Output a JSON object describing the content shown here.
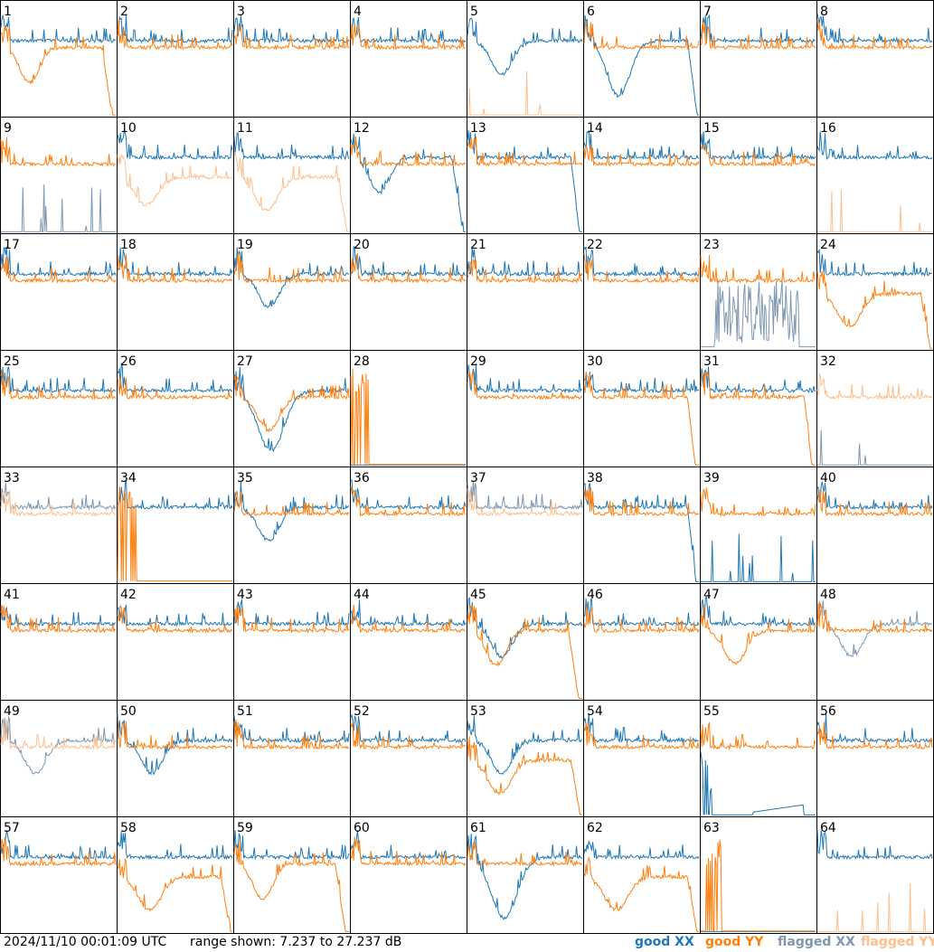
{
  "footer": {
    "timestamp": "2024/11/10 00:01:09 UTC",
    "range_text": "range shown: 7.237 to 27.237 dB"
  },
  "legend": [
    {
      "label": "good XX",
      "color": "#1f77b4"
    },
    {
      "label": "good YY",
      "color": "#ff7f0e"
    },
    {
      "label": "flagged XX",
      "color": "#7f97b0"
    },
    {
      "label": "flagged YY",
      "color": "#fdbf8f"
    }
  ],
  "chart_data": {
    "type": "line",
    "description_units": "dB",
    "yrange": [
      7.237,
      27.237
    ],
    "grid_rows": 8,
    "grid_cols": 8,
    "series_styles": {
      "good_xx": "#1f77b4",
      "good_yy": "#ff7f0e",
      "flagged_xx": "#7f97b0",
      "flagged_yy": "#fdbf8f"
    },
    "panels": [
      {
        "id": "1",
        "xx": "good",
        "yy": "good",
        "xx_shape": "flat",
        "yy_shape": "dip-rollbot"
      },
      {
        "id": "2",
        "xx": "good",
        "yy": "good",
        "xx_shape": "flat",
        "yy_shape": "flat"
      },
      {
        "id": "3",
        "xx": "good",
        "yy": "good",
        "xx_shape": "flat",
        "yy_shape": "flat"
      },
      {
        "id": "4",
        "xx": "good",
        "yy": "good",
        "xx_shape": "flat",
        "yy_shape": "flat"
      },
      {
        "id": "5",
        "xx": "good",
        "yy": "flagged",
        "xx_shape": "dip",
        "yy_shape": "bottom-spikes"
      },
      {
        "id": "6",
        "xx": "good",
        "yy": "good",
        "xx_shape": "bigdip-rollbot",
        "yy_shape": "flat"
      },
      {
        "id": "7",
        "xx": "good",
        "yy": "good",
        "xx_shape": "flat",
        "yy_shape": "flat"
      },
      {
        "id": "8",
        "xx": "good",
        "yy": "good",
        "xx_shape": "flat",
        "yy_shape": "flat"
      },
      {
        "id": "9",
        "xx": "flagged",
        "yy": "good",
        "xx_shape": "bottom-spikes",
        "yy_shape": "flat"
      },
      {
        "id": "10",
        "xx": "good",
        "yy": "flagged",
        "xx_shape": "flat",
        "yy_shape": "lowdip"
      },
      {
        "id": "11",
        "xx": "good",
        "yy": "flagged",
        "xx_shape": "flat",
        "yy_shape": "lowdip-rollbot"
      },
      {
        "id": "12",
        "xx": "good",
        "yy": "good",
        "xx_shape": "dip-rollbot",
        "yy_shape": "flat"
      },
      {
        "id": "13",
        "xx": "good",
        "yy": "good",
        "xx_shape": "flat-rollbot",
        "yy_shape": "flat"
      },
      {
        "id": "14",
        "xx": "good",
        "yy": "good",
        "xx_shape": "flat",
        "yy_shape": "flat"
      },
      {
        "id": "15",
        "xx": "good",
        "yy": "good",
        "xx_shape": "flat",
        "yy_shape": "flat"
      },
      {
        "id": "16",
        "xx": "good",
        "yy": "flagged",
        "xx_shape": "flat",
        "yy_shape": "bottom-spikes"
      },
      {
        "id": "17",
        "xx": "good",
        "yy": "good",
        "xx_shape": "flat",
        "yy_shape": "flat"
      },
      {
        "id": "18",
        "xx": "good",
        "yy": "good",
        "xx_shape": "flat",
        "yy_shape": "flat"
      },
      {
        "id": "19",
        "xx": "good",
        "yy": "good",
        "xx_shape": "dip",
        "yy_shape": "flat"
      },
      {
        "id": "20",
        "xx": "good",
        "yy": "good",
        "xx_shape": "flat",
        "yy_shape": "flat"
      },
      {
        "id": "21",
        "xx": "good",
        "yy": "good",
        "xx_shape": "flat",
        "yy_shape": "flat"
      },
      {
        "id": "22",
        "xx": "good",
        "yy": "good",
        "xx_shape": "flat",
        "yy_shape": "flat"
      },
      {
        "id": "23",
        "xx": "flagged",
        "yy": "good",
        "xx_shape": "noise",
        "yy_shape": "flat"
      },
      {
        "id": "24",
        "xx": "good",
        "yy": "good",
        "xx_shape": "flat",
        "yy_shape": "lowdip-rollbot"
      },
      {
        "id": "25",
        "xx": "good",
        "yy": "good",
        "xx_shape": "flat",
        "yy_shape": "flat"
      },
      {
        "id": "26",
        "xx": "good",
        "yy": "good",
        "xx_shape": "flat",
        "yy_shape": "flat"
      },
      {
        "id": "27",
        "xx": "good",
        "yy": "good",
        "xx_shape": "bigdip",
        "yy_shape": "dip"
      },
      {
        "id": "28",
        "xx": "good",
        "yy": "good",
        "xx_shape": "bottom",
        "yy_shape": "burst"
      },
      {
        "id": "29",
        "xx": "good",
        "yy": "good",
        "xx_shape": "flat",
        "yy_shape": "flat"
      },
      {
        "id": "30",
        "xx": "good",
        "yy": "good",
        "xx_shape": "flat",
        "yy_shape": "flat-rollbot"
      },
      {
        "id": "31",
        "xx": "good",
        "yy": "good",
        "xx_shape": "flat",
        "yy_shape": "flat-rollbot"
      },
      {
        "id": "32",
        "xx": "flagged",
        "yy": "flagged",
        "xx_shape": "bottom-spikes",
        "yy_shape": "flat"
      },
      {
        "id": "33",
        "xx": "flagged",
        "yy": "flagged",
        "xx_shape": "flat",
        "yy_shape": "flat"
      },
      {
        "id": "34",
        "xx": "good",
        "yy": "good",
        "xx_shape": "flat",
        "yy_shape": "burst"
      },
      {
        "id": "35",
        "xx": "good",
        "yy": "good",
        "xx_shape": "dip",
        "yy_shape": "flat"
      },
      {
        "id": "36",
        "xx": "good",
        "yy": "good",
        "xx_shape": "flat",
        "yy_shape": "flat"
      },
      {
        "id": "37",
        "xx": "flagged",
        "yy": "flagged",
        "xx_shape": "flat",
        "yy_shape": "flat"
      },
      {
        "id": "38",
        "xx": "good",
        "yy": "good",
        "xx_shape": "flat-rollbot",
        "yy_shape": "flat"
      },
      {
        "id": "39",
        "xx": "good",
        "yy": "good",
        "xx_shape": "bottom-spikes",
        "yy_shape": "flat"
      },
      {
        "id": "40",
        "xx": "good",
        "yy": "good",
        "xx_shape": "flat",
        "yy_shape": "flat"
      },
      {
        "id": "41",
        "xx": "good",
        "yy": "good",
        "xx_shape": "flat",
        "yy_shape": "flat"
      },
      {
        "id": "42",
        "xx": "good",
        "yy": "good",
        "xx_shape": "flat",
        "yy_shape": "flat"
      },
      {
        "id": "43",
        "xx": "good",
        "yy": "good",
        "xx_shape": "flat",
        "yy_shape": "flat"
      },
      {
        "id": "44",
        "xx": "good",
        "yy": "good",
        "xx_shape": "flat",
        "yy_shape": "flat"
      },
      {
        "id": "45",
        "xx": "good",
        "yy": "good",
        "xx_shape": "dip",
        "yy_shape": "dip-rollbot"
      },
      {
        "id": "46",
        "xx": "good",
        "yy": "good",
        "xx_shape": "flat",
        "yy_shape": "flat"
      },
      {
        "id": "47",
        "xx": "good",
        "yy": "good",
        "xx_shape": "flat",
        "yy_shape": "dip"
      },
      {
        "id": "48",
        "xx": "flagged",
        "yy": "good",
        "xx_shape": "dip",
        "yy_shape": "flat"
      },
      {
        "id": "49",
        "xx": "flagged",
        "yy": "flagged",
        "xx_shape": "dip",
        "yy_shape": "flat"
      },
      {
        "id": "50",
        "xx": "good",
        "yy": "good",
        "xx_shape": "dip",
        "yy_shape": "flat"
      },
      {
        "id": "51",
        "xx": "good",
        "yy": "good",
        "xx_shape": "flat",
        "yy_shape": "flat"
      },
      {
        "id": "52",
        "xx": "good",
        "yy": "good",
        "xx_shape": "flat",
        "yy_shape": "flat"
      },
      {
        "id": "53",
        "xx": "good",
        "yy": "good",
        "xx_shape": "dip",
        "yy_shape": "lowdip-rollbot"
      },
      {
        "id": "54",
        "xx": "good",
        "yy": "good",
        "xx_shape": "flat",
        "yy_shape": "flat"
      },
      {
        "id": "55",
        "xx": "good",
        "yy": "good",
        "xx_shape": "ramp-bottom",
        "yy_shape": "flat"
      },
      {
        "id": "56",
        "xx": "good",
        "yy": "good",
        "xx_shape": "flat",
        "yy_shape": "flat"
      },
      {
        "id": "57",
        "xx": "good",
        "yy": "good",
        "xx_shape": "flat",
        "yy_shape": "flat"
      },
      {
        "id": "58",
        "xx": "good",
        "yy": "good",
        "xx_shape": "flat",
        "yy_shape": "lowdip-rollbot"
      },
      {
        "id": "59",
        "xx": "good",
        "yy": "good",
        "xx_shape": "flat",
        "yy_shape": "dip-rollbot"
      },
      {
        "id": "60",
        "xx": "good",
        "yy": "good",
        "xx_shape": "flat",
        "yy_shape": "flat"
      },
      {
        "id": "61",
        "xx": "good",
        "yy": "good",
        "xx_shape": "bigdip",
        "yy_shape": "flat"
      },
      {
        "id": "62",
        "xx": "good",
        "yy": "good",
        "xx_shape": "flat",
        "yy_shape": "lowdip-rollbot"
      },
      {
        "id": "63",
        "xx": "good",
        "yy": "good",
        "xx_shape": "bottom",
        "yy_shape": "burst"
      },
      {
        "id": "64",
        "xx": "good",
        "yy": "flagged",
        "xx_shape": "flat",
        "yy_shape": "bottom-spikes"
      }
    ]
  }
}
